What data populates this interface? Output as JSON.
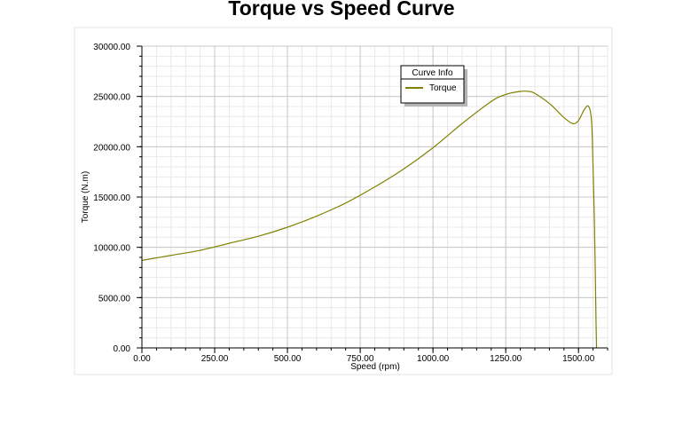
{
  "chart_data": {
    "type": "line",
    "title": "Torque vs Speed Curve",
    "xlabel": "Speed (rpm)",
    "ylabel": "Torque (N.m)",
    "xlim": [
      0,
      1600
    ],
    "ylim": [
      0,
      30000
    ],
    "x_ticks": [
      "0.00",
      "250.00",
      "500.00",
      "750.00",
      "1000.00",
      "1250.00",
      "1500.00"
    ],
    "y_ticks": [
      "0.00",
      "5000.00",
      "10000.00",
      "15000.00",
      "20000.00",
      "25000.00",
      "30000.00"
    ],
    "grid": true,
    "legend": {
      "title": "Curve Info",
      "position": "top-right"
    },
    "series": [
      {
        "name": "Torque",
        "color": "#808000",
        "x": [
          0,
          100,
          200,
          300,
          400,
          500,
          600,
          700,
          800,
          900,
          1000,
          1100,
          1200,
          1250,
          1300,
          1330,
          1350,
          1400,
          1450,
          1480,
          1500,
          1520,
          1535,
          1545,
          1550,
          1555,
          1558,
          1560,
          1562
        ],
        "y": [
          8700,
          9200,
          9700,
          10400,
          11100,
          12000,
          13100,
          14400,
          16000,
          17800,
          19900,
          22300,
          24500,
          25200,
          25500,
          25500,
          25300,
          24300,
          22900,
          22300,
          22600,
          23700,
          24000,
          22500,
          18000,
          12000,
          7000,
          3000,
          0
        ]
      }
    ]
  }
}
